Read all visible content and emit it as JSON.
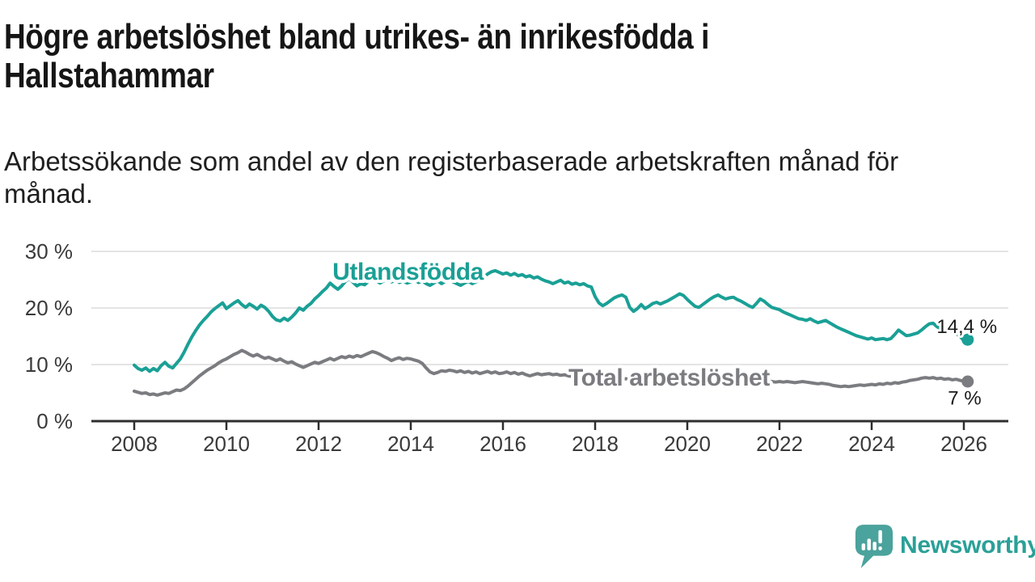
{
  "header": {
    "title_lines": [
      "Högre arbetslöshet bland utrikes- än inrikesfödda i",
      "Hallstahammar"
    ],
    "subtitle_lines": [
      "Arbetssökande som andel av den registerbaserade arbetskraften månad för",
      "månad."
    ]
  },
  "footer": {
    "brand": "Newsworthy",
    "brand_color": "#2aa098",
    "logo_bubble_color": "#4aa39c"
  },
  "chart_data": {
    "type": "line",
    "title": "Högre arbetslöshet bland utrikes- än inrikesfödda i Hallstahammar",
    "subtitle": "Arbetssökande som andel av den registerbaserade arbetskraften månad för månad.",
    "x_start_year": 2008,
    "x_step_months": 1,
    "xlim": [
      2008,
      2026.17
    ],
    "ylim": [
      0,
      31
    ],
    "grid": true,
    "legend_position": "inline-labels",
    "x_ticks": [
      {
        "value": 2008,
        "label": "2008"
      },
      {
        "value": 2010,
        "label": "2010"
      },
      {
        "value": 2012,
        "label": "2012"
      },
      {
        "value": 2014,
        "label": "2014"
      },
      {
        "value": 2016,
        "label": "2016"
      },
      {
        "value": 2018,
        "label": "2018"
      },
      {
        "value": 2020,
        "label": "2020"
      },
      {
        "value": 2022,
        "label": "2022"
      },
      {
        "value": 2024,
        "label": "2024"
      },
      {
        "value": 2026,
        "label": "2026"
      }
    ],
    "y_ticks": [
      {
        "value": 0,
        "label": "0 %"
      },
      {
        "value": 10,
        "label": "10 %"
      },
      {
        "value": 20,
        "label": "20 %"
      },
      {
        "value": 30,
        "label": "30 %"
      }
    ],
    "style": {
      "grid_color": "#dcdcdc",
      "axis_color": "#2e2e2e",
      "tick_label_color": "#3a3a3a",
      "value_label_color": "#1b1b1b"
    },
    "series": [
      {
        "name": "Utlandsfödda",
        "color": "#1aa096",
        "inline_label": {
          "text": "Utlandsfödda",
          "t": 2012.3,
          "v": 25.0,
          "anchor": "start"
        },
        "end_label": {
          "text": "14,4 %",
          "t": 2026.72,
          "v": 15.6,
          "anchor": "end"
        },
        "end_value": 14.4,
        "values": [
          9.9,
          9.3,
          9.0,
          9.4,
          8.8,
          9.3,
          8.9,
          9.8,
          10.4,
          9.7,
          9.4,
          10.2,
          11.0,
          12.2,
          13.6,
          14.9,
          16.0,
          17.0,
          17.8,
          18.5,
          19.3,
          19.9,
          20.4,
          20.9,
          19.9,
          20.4,
          20.9,
          21.3,
          20.6,
          20.1,
          20.7,
          20.3,
          19.8,
          20.5,
          20.1,
          19.4,
          18.5,
          17.9,
          17.7,
          18.2,
          17.8,
          18.4,
          19.1,
          20.0,
          19.6,
          20.3,
          20.8,
          21.6,
          22.2,
          22.9,
          23.5,
          24.4,
          23.8,
          23.3,
          23.9,
          24.7,
          25.2,
          24.5,
          23.9,
          24.3,
          24.1,
          24.7,
          25.3,
          24.8,
          24.4,
          24.8,
          25.1,
          24.6,
          24.9,
          24.5,
          24.8,
          24.4,
          24.6,
          25.0,
          24.5,
          24.8,
          24.3,
          24.0,
          24.4,
          24.8,
          24.3,
          24.7,
          25.0,
          24.6,
          24.3,
          24.0,
          24.4,
          24.7,
          24.3,
          24.6,
          25.0,
          25.5,
          26.0,
          26.4,
          26.6,
          26.3,
          26.0,
          26.2,
          25.8,
          26.1,
          25.7,
          25.9,
          25.5,
          25.7,
          25.3,
          25.5,
          25.1,
          24.8,
          24.6,
          24.3,
          24.6,
          24.9,
          24.4,
          24.6,
          24.2,
          24.4,
          24.1,
          24.3,
          23.9,
          23.7,
          22.0,
          20.9,
          20.4,
          20.8,
          21.3,
          21.8,
          22.1,
          22.3,
          21.9,
          20.1,
          19.4,
          19.9,
          20.6,
          19.9,
          20.3,
          20.8,
          21.0,
          20.7,
          21.0,
          21.3,
          21.7,
          22.1,
          22.5,
          22.2,
          21.5,
          20.9,
          20.3,
          20.1,
          20.6,
          21.1,
          21.6,
          22.0,
          22.3,
          21.9,
          21.6,
          21.8,
          21.9,
          21.5,
          21.2,
          20.8,
          20.4,
          20.1,
          20.8,
          21.6,
          21.2,
          20.6,
          20.1,
          19.9,
          19.7,
          19.3,
          19.0,
          18.7,
          18.4,
          18.1,
          18.0,
          17.8,
          18.1,
          17.7,
          17.4,
          17.6,
          17.8,
          17.4,
          17.0,
          16.6,
          16.3,
          16.0,
          15.7,
          15.4,
          15.1,
          14.9,
          14.7,
          14.5,
          14.7,
          14.4,
          14.5,
          14.6,
          14.4,
          14.6,
          15.3,
          16.1,
          15.6,
          15.1,
          15.2,
          15.4,
          15.6,
          16.1,
          16.7,
          17.2,
          17.3,
          16.7,
          16.3,
          16.1,
          16.4,
          15.9,
          15.5,
          15.0,
          14.2,
          14.4
        ]
      },
      {
        "name": "Total arbetslöshet",
        "color": "#7b7c80",
        "inline_label": {
          "text": "Total arbetslöshet",
          "t": 2017.42,
          "v": 6.3,
          "anchor": "start"
        },
        "end_label": {
          "text": "7 %",
          "t": 2026.38,
          "v": 2.9,
          "anchor": "end"
        },
        "end_value": 7.0,
        "values": [
          5.3,
          5.1,
          4.9,
          5.0,
          4.7,
          4.8,
          4.6,
          4.8,
          5.0,
          4.9,
          5.2,
          5.5,
          5.4,
          5.7,
          6.2,
          6.8,
          7.4,
          8.0,
          8.5,
          9.0,
          9.4,
          9.8,
          10.3,
          10.7,
          11.0,
          11.4,
          11.8,
          12.1,
          12.5,
          12.2,
          11.8,
          11.5,
          11.8,
          11.4,
          11.1,
          11.3,
          11.0,
          10.7,
          11.0,
          10.6,
          10.3,
          10.5,
          10.1,
          9.8,
          9.5,
          9.8,
          10.1,
          10.4,
          10.2,
          10.5,
          10.8,
          11.1,
          10.8,
          11.1,
          11.4,
          11.2,
          11.5,
          11.3,
          11.6,
          11.4,
          11.7,
          12.0,
          12.3,
          12.1,
          11.8,
          11.4,
          11.1,
          10.7,
          11.0,
          11.2,
          10.9,
          11.1,
          11.0,
          10.8,
          10.6,
          10.2,
          9.4,
          8.7,
          8.4,
          8.6,
          8.9,
          8.8,
          9.0,
          8.9,
          8.7,
          8.9,
          8.6,
          8.8,
          8.5,
          8.7,
          8.4,
          8.6,
          8.8,
          8.5,
          8.7,
          8.4,
          8.5,
          8.7,
          8.4,
          8.6,
          8.3,
          8.5,
          8.2,
          8.0,
          8.2,
          8.4,
          8.2,
          8.3,
          8.4,
          8.2,
          8.3,
          8.1,
          8.2,
          8.0,
          7.9,
          8.0,
          7.8,
          7.9,
          7.7,
          7.8,
          7.9,
          7.7,
          7.8,
          7.6,
          7.7,
          7.5,
          7.6,
          7.4,
          7.5,
          7.3,
          7.4,
          7.5,
          7.4,
          7.5,
          7.3,
          7.4,
          7.2,
          7.3,
          7.4,
          7.2,
          7.3,
          7.5,
          7.4,
          7.6,
          7.5,
          7.6,
          7.8,
          8.0,
          8.2,
          8.1,
          8.0,
          7.9,
          7.8,
          7.7,
          7.6,
          7.5,
          7.6,
          7.5,
          7.4,
          7.3,
          7.2,
          7.3,
          7.2,
          7.1,
          7.0,
          7.1,
          7.0,
          6.9,
          7.0,
          6.9,
          7.0,
          6.9,
          6.8,
          6.9,
          7.0,
          6.9,
          6.8,
          6.7,
          6.6,
          6.7,
          6.6,
          6.5,
          6.3,
          6.2,
          6.1,
          6.2,
          6.1,
          6.2,
          6.3,
          6.4,
          6.3,
          6.4,
          6.5,
          6.4,
          6.6,
          6.5,
          6.7,
          6.6,
          6.8,
          6.7,
          6.9,
          7.0,
          7.2,
          7.3,
          7.4,
          7.6,
          7.7,
          7.6,
          7.7,
          7.5,
          7.6,
          7.4,
          7.5,
          7.3,
          7.4,
          7.2,
          7.1,
          7.0
        ]
      }
    ]
  }
}
